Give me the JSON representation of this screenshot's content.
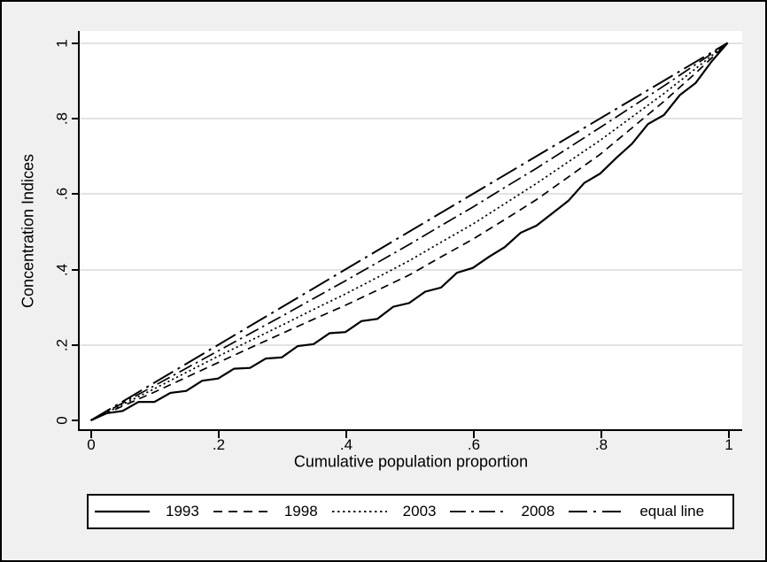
{
  "chart_data": {
    "type": "line",
    "title": "",
    "xlabel": "Cumulative population proportion",
    "ylabel": "Concentration Indices",
    "xlim": [
      0,
      1
    ],
    "ylim": [
      0,
      1
    ],
    "grid": "horizontal",
    "legend_position": "bottom",
    "x_ticks": [
      0,
      0.2,
      0.4,
      0.6,
      0.8,
      1
    ],
    "x_tick_labels": [
      "0",
      ".2",
      ".4",
      ".6",
      ".8",
      "1"
    ],
    "y_ticks": [
      0,
      0.2,
      0.4,
      0.6,
      0.8,
      1
    ],
    "y_tick_labels": [
      "0",
      ".2",
      ".4",
      ".6",
      ".8",
      "1"
    ],
    "colors": {
      "line": "#000000",
      "plot_bg": "#ffffff",
      "outer_bg": "#f0f0f0",
      "grid": "#e3e3e3"
    },
    "series": [
      {
        "name": "1993",
        "dash": "solid",
        "width": 2.2,
        "points": [
          [
            0,
            0
          ],
          [
            0.025,
            0.019
          ],
          [
            0.05,
            0.025
          ],
          [
            0.075,
            0.049
          ],
          [
            0.1,
            0.049
          ],
          [
            0.125,
            0.073
          ],
          [
            0.15,
            0.078
          ],
          [
            0.175,
            0.105
          ],
          [
            0.2,
            0.111
          ],
          [
            0.225,
            0.137
          ],
          [
            0.25,
            0.139
          ],
          [
            0.275,
            0.164
          ],
          [
            0.3,
            0.167
          ],
          [
            0.325,
            0.197
          ],
          [
            0.35,
            0.202
          ],
          [
            0.375,
            0.231
          ],
          [
            0.4,
            0.234
          ],
          [
            0.425,
            0.263
          ],
          [
            0.45,
            0.269
          ],
          [
            0.475,
            0.301
          ],
          [
            0.5,
            0.311
          ],
          [
            0.525,
            0.341
          ],
          [
            0.55,
            0.352
          ],
          [
            0.575,
            0.391
          ],
          [
            0.6,
            0.404
          ],
          [
            0.625,
            0.433
          ],
          [
            0.65,
            0.459
          ],
          [
            0.675,
            0.497
          ],
          [
            0.7,
            0.516
          ],
          [
            0.725,
            0.549
          ],
          [
            0.75,
            0.582
          ],
          [
            0.775,
            0.629
          ],
          [
            0.8,
            0.654
          ],
          [
            0.825,
            0.695
          ],
          [
            0.85,
            0.733
          ],
          [
            0.875,
            0.785
          ],
          [
            0.9,
            0.809
          ],
          [
            0.925,
            0.862
          ],
          [
            0.95,
            0.894
          ],
          [
            0.975,
            0.951
          ],
          [
            1,
            1
          ]
        ]
      },
      {
        "name": "1998",
        "dash": "dash",
        "width": 1.7,
        "points": [
          [
            0,
            0
          ],
          [
            0.05,
            0.038
          ],
          [
            0.1,
            0.075
          ],
          [
            0.15,
            0.114
          ],
          [
            0.2,
            0.153
          ],
          [
            0.25,
            0.192
          ],
          [
            0.3,
            0.23
          ],
          [
            0.35,
            0.268
          ],
          [
            0.4,
            0.305
          ],
          [
            0.45,
            0.345
          ],
          [
            0.5,
            0.385
          ],
          [
            0.55,
            0.433
          ],
          [
            0.6,
            0.48
          ],
          [
            0.65,
            0.532
          ],
          [
            0.7,
            0.585
          ],
          [
            0.75,
            0.645
          ],
          [
            0.8,
            0.705
          ],
          [
            0.85,
            0.775
          ],
          [
            0.9,
            0.845
          ],
          [
            0.95,
            0.92
          ],
          [
            1,
            1
          ]
        ]
      },
      {
        "name": "2003",
        "dash": "dot",
        "width": 1.7,
        "points": [
          [
            0,
            0
          ],
          [
            0.05,
            0.042
          ],
          [
            0.1,
            0.084
          ],
          [
            0.15,
            0.127
          ],
          [
            0.2,
            0.17
          ],
          [
            0.25,
            0.211
          ],
          [
            0.3,
            0.252
          ],
          [
            0.35,
            0.294
          ],
          [
            0.4,
            0.335
          ],
          [
            0.45,
            0.379
          ],
          [
            0.5,
            0.423
          ],
          [
            0.55,
            0.472
          ],
          [
            0.6,
            0.52
          ],
          [
            0.65,
            0.574
          ],
          [
            0.7,
            0.628
          ],
          [
            0.75,
            0.685
          ],
          [
            0.8,
            0.742
          ],
          [
            0.85,
            0.804
          ],
          [
            0.9,
            0.866
          ],
          [
            0.95,
            0.932
          ],
          [
            1,
            1
          ]
        ]
      },
      {
        "name": "2008",
        "dash": "dash-dot",
        "width": 1.7,
        "points": [
          [
            0,
            0
          ],
          [
            0.05,
            0.046
          ],
          [
            0.1,
            0.092
          ],
          [
            0.15,
            0.138
          ],
          [
            0.2,
            0.184
          ],
          [
            0.25,
            0.23
          ],
          [
            0.3,
            0.276
          ],
          [
            0.35,
            0.323
          ],
          [
            0.4,
            0.37
          ],
          [
            0.45,
            0.418
          ],
          [
            0.5,
            0.466
          ],
          [
            0.55,
            0.516
          ],
          [
            0.6,
            0.565
          ],
          [
            0.65,
            0.617
          ],
          [
            0.7,
            0.668
          ],
          [
            0.75,
            0.722
          ],
          [
            0.8,
            0.776
          ],
          [
            0.85,
            0.831
          ],
          [
            0.9,
            0.886
          ],
          [
            0.95,
            0.943
          ],
          [
            1,
            1
          ]
        ]
      },
      {
        "name": "equal line",
        "dash": "longdash-dot",
        "width": 2,
        "points": [
          [
            0,
            0
          ],
          [
            1,
            1
          ]
        ]
      }
    ]
  }
}
